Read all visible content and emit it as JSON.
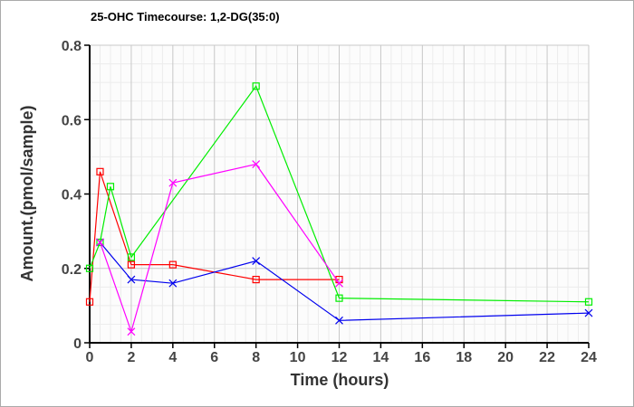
{
  "chart_data": {
    "type": "line",
    "title": "25-OHC Timecourse: 1,2-DG(35:0)",
    "xlabel": "Time (hours)",
    "ylabel": "Amount.(pmol/sample)",
    "xlim": [
      0,
      24
    ],
    "ylim": [
      0,
      0.8
    ],
    "xticks": [
      "0",
      "2",
      "4",
      "6",
      "8",
      "10",
      "12",
      "14",
      "16",
      "18",
      "20",
      "22",
      "24"
    ],
    "yticks": [
      "0",
      "0.2",
      "0.4",
      "0.6",
      "0.8"
    ],
    "grid": true,
    "series": [
      {
        "color": "#ff0000",
        "marker": "square",
        "x": [
          0,
          0.5,
          2,
          4,
          8,
          12
        ],
        "y": [
          0.11,
          0.46,
          0.21,
          0.21,
          0.17,
          0.17
        ]
      },
      {
        "color": "#00ee00",
        "marker": "square",
        "x": [
          0,
          0.5,
          1,
          2,
          8,
          12,
          24
        ],
        "y": [
          0.2,
          0.27,
          0.42,
          0.23,
          0.69,
          0.12,
          0.11
        ]
      },
      {
        "color": "#0000ee",
        "marker": "x",
        "x": [
          0.5,
          2,
          4,
          8,
          12,
          24
        ],
        "y": [
          0.27,
          0.17,
          0.16,
          0.22,
          0.06,
          0.08
        ]
      },
      {
        "color": "#ff00ff",
        "marker": "x",
        "x": [
          0.5,
          2,
          4,
          8,
          12
        ],
        "y": [
          0.27,
          0.03,
          0.43,
          0.48,
          0.16
        ]
      }
    ]
  }
}
